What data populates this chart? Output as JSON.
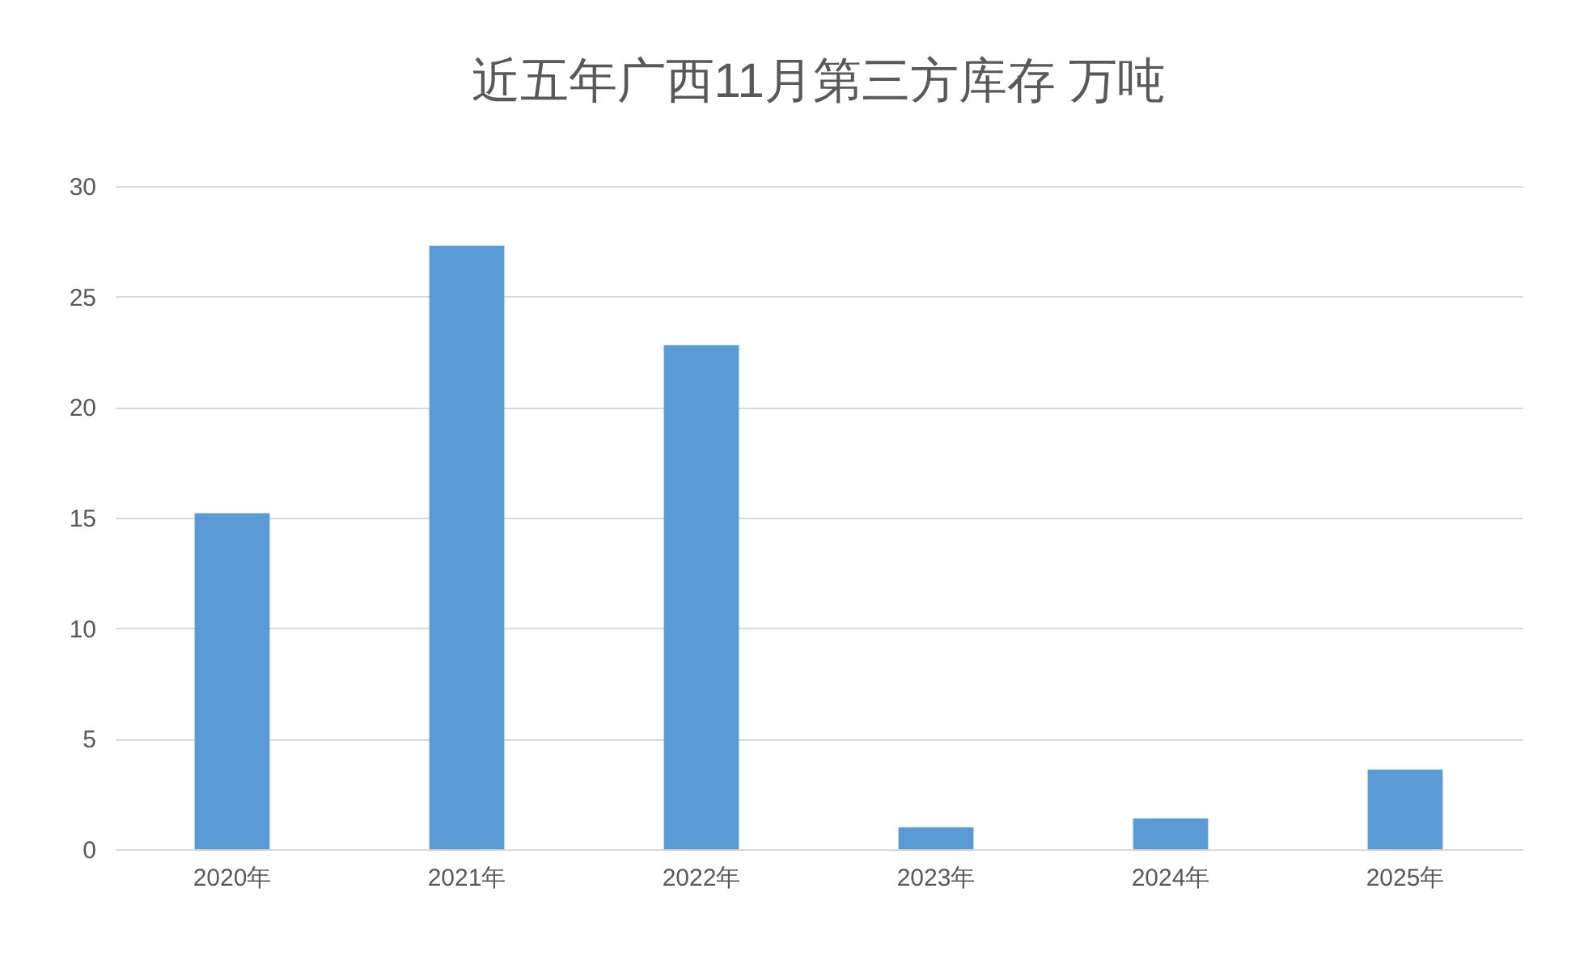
{
  "chart_data": {
    "type": "bar",
    "title": "近五年广西11月第三方库存  万吨",
    "categories": [
      "2020年",
      "2021年",
      "2022年",
      "2023年",
      "2024年",
      "2025年"
    ],
    "values": [
      15.2,
      27.3,
      22.8,
      1.0,
      1.4,
      3.6
    ],
    "color": "#5b9bd5",
    "ylim": [
      0,
      30
    ],
    "yticks": [
      0,
      5,
      10,
      15,
      20,
      25,
      30
    ],
    "grid": "y"
  }
}
